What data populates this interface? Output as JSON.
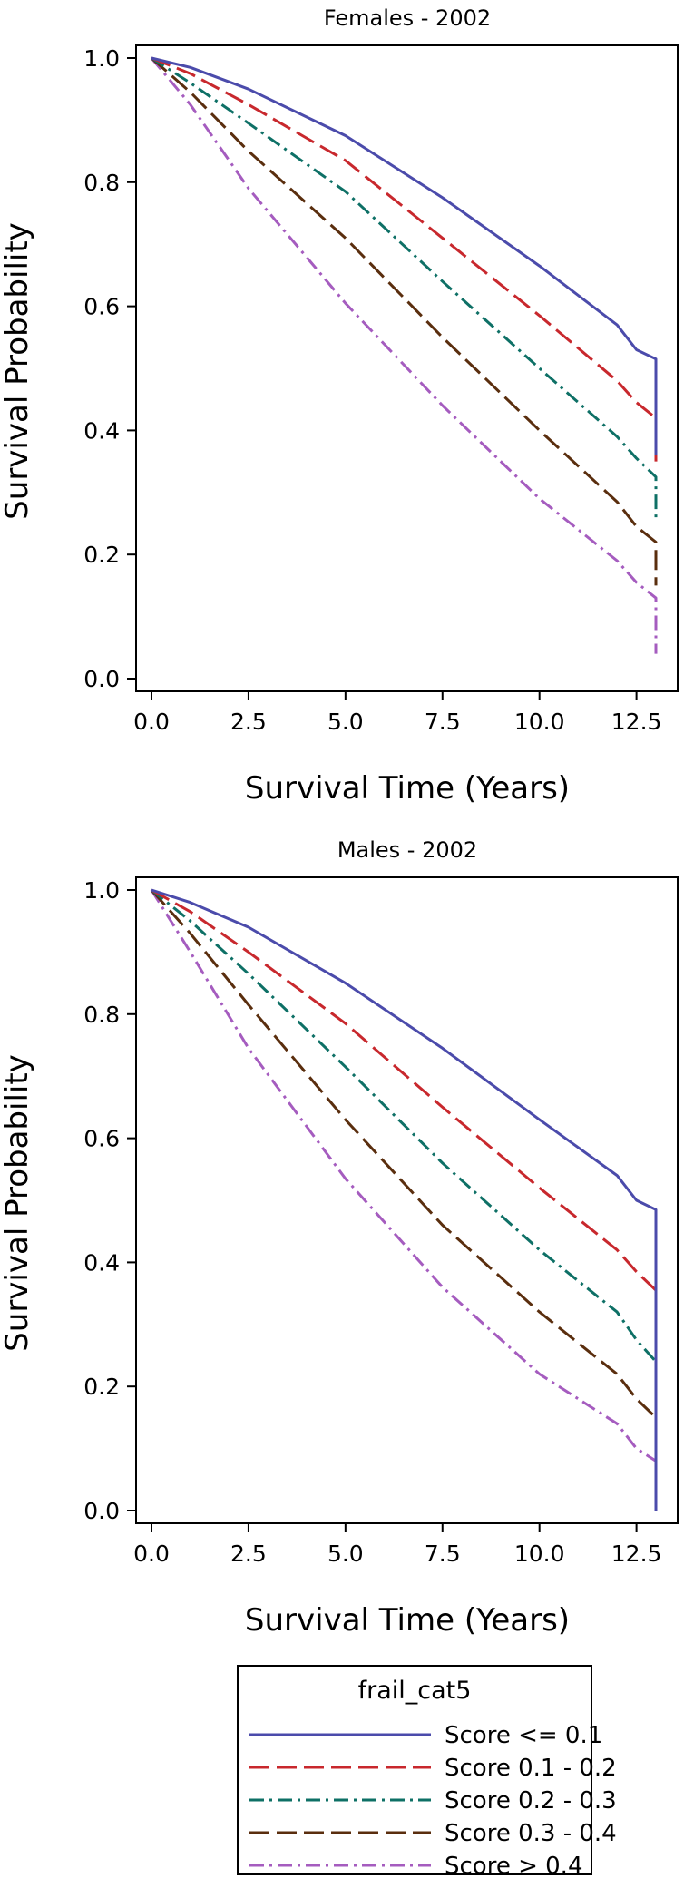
{
  "chart_data": [
    {
      "type": "line",
      "title": "Females - 2002",
      "xlabel": "Survival Time (Years)",
      "ylabel": "Survival Probability",
      "xlim": [
        0,
        13
      ],
      "ylim": [
        0,
        1
      ],
      "x_ticks": [
        "0.0",
        "2.5",
        "5.0",
        "7.5",
        "10.0",
        "12.5"
      ],
      "y_ticks": [
        "0.0",
        "0.2",
        "0.4",
        "0.6",
        "0.8",
        "1.0"
      ],
      "grid": false,
      "series": [
        {
          "name": "Score <= 0.1",
          "x": [
            0,
            1,
            2.5,
            5,
            7.5,
            10,
            12,
            12.5,
            13,
            13
          ],
          "y": [
            1.0,
            0.985,
            0.95,
            0.875,
            0.775,
            0.665,
            0.57,
            0.53,
            0.515,
            0.36
          ]
        },
        {
          "name": "Score 0.1 - 0.2",
          "x": [
            0,
            1,
            2.5,
            5,
            7.5,
            10,
            12,
            12.5,
            13,
            13
          ],
          "y": [
            1.0,
            0.975,
            0.925,
            0.835,
            0.71,
            0.585,
            0.48,
            0.445,
            0.42,
            0.35
          ]
        },
        {
          "name": "Score 0.2 - 0.3",
          "x": [
            0,
            1,
            2.5,
            5,
            7.5,
            10,
            12,
            12.5,
            13,
            13
          ],
          "y": [
            1.0,
            0.96,
            0.895,
            0.785,
            0.64,
            0.5,
            0.39,
            0.355,
            0.325,
            0.26
          ]
        },
        {
          "name": "Score 0.3 - 0.4",
          "x": [
            0,
            1,
            2.5,
            5,
            7.5,
            10,
            12,
            12.5,
            13,
            13
          ],
          "y": [
            1.0,
            0.945,
            0.85,
            0.71,
            0.55,
            0.4,
            0.285,
            0.245,
            0.22,
            0.15
          ]
        },
        {
          "name": "Score > 0.4",
          "x": [
            0,
            1,
            2.5,
            5,
            7.5,
            10,
            12,
            12.5,
            13,
            13
          ],
          "y": [
            1.0,
            0.925,
            0.79,
            0.605,
            0.44,
            0.29,
            0.19,
            0.155,
            0.13,
            0.04
          ]
        }
      ]
    },
    {
      "type": "line",
      "title": "Males - 2002",
      "xlabel": "Survival Time (Years)",
      "ylabel": "Survival Probability",
      "xlim": [
        0,
        13
      ],
      "ylim": [
        0,
        1
      ],
      "x_ticks": [
        "0.0",
        "2.5",
        "5.0",
        "7.5",
        "10.0",
        "12.5"
      ],
      "y_ticks": [
        "0.0",
        "0.2",
        "0.4",
        "0.6",
        "0.8",
        "1.0"
      ],
      "grid": false,
      "series": [
        {
          "name": "Score <= 0.1",
          "x": [
            0,
            1,
            2.5,
            5,
            7.5,
            10,
            12,
            12.5,
            13,
            13
          ],
          "y": [
            1.0,
            0.98,
            0.94,
            0.85,
            0.745,
            0.63,
            0.54,
            0.5,
            0.485,
            0.0
          ]
        },
        {
          "name": "Score 0.1 - 0.2",
          "x": [
            0,
            1,
            2.5,
            5,
            7.5,
            10,
            12,
            12.5,
            13,
            13
          ],
          "y": [
            1.0,
            0.965,
            0.9,
            0.785,
            0.65,
            0.52,
            0.42,
            0.385,
            0.355,
            0.0
          ]
        },
        {
          "name": "Score 0.2 - 0.3",
          "x": [
            0,
            1,
            2.5,
            5,
            7.5,
            10,
            12,
            12.5,
            13,
            13
          ],
          "y": [
            1.0,
            0.95,
            0.865,
            0.715,
            0.56,
            0.42,
            0.32,
            0.275,
            0.24,
            0.0
          ]
        },
        {
          "name": "Score 0.3 - 0.4",
          "x": [
            0,
            1,
            2.5,
            5,
            7.5,
            10,
            12,
            12.5,
            13,
            13
          ],
          "y": [
            1.0,
            0.93,
            0.815,
            0.63,
            0.46,
            0.32,
            0.22,
            0.18,
            0.15,
            0.0
          ]
        },
        {
          "name": "Score > 0.4",
          "x": [
            0,
            1,
            2.5,
            5,
            7.5,
            10,
            12,
            12.5,
            13,
            13
          ],
          "y": [
            1.0,
            0.9,
            0.745,
            0.535,
            0.36,
            0.22,
            0.14,
            0.1,
            0.08,
            0.0
          ]
        }
      ]
    }
  ],
  "legend": {
    "title": "frail_cat5",
    "placement": "bottom",
    "entries": [
      {
        "label": "Score <= 0.1",
        "color": "#4b4bab",
        "dash": "none"
      },
      {
        "label": "Score 0.1 - 0.2",
        "color": "#c8282d",
        "dash": "long-dash"
      },
      {
        "label": "Score 0.2 - 0.3",
        "color": "#0e7066",
        "dash": "dash-dot"
      },
      {
        "label": "Score 0.3 - 0.4",
        "color": "#5a2e0e",
        "dash": "long-dash"
      },
      {
        "label": "Score > 0.4",
        "color": "#a55cbf",
        "dash": "dash-dot"
      }
    ]
  }
}
